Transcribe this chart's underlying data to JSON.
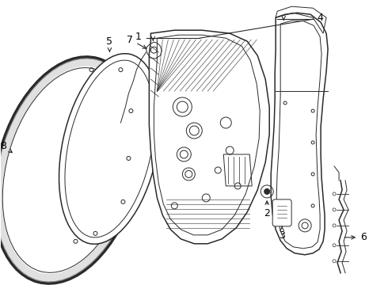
{
  "background_color": "#ffffff",
  "line_color": "#2a2a2a",
  "label_color": "#000000",
  "lw_thin": 0.7,
  "lw_med": 1.1,
  "lw_thick": 1.8
}
